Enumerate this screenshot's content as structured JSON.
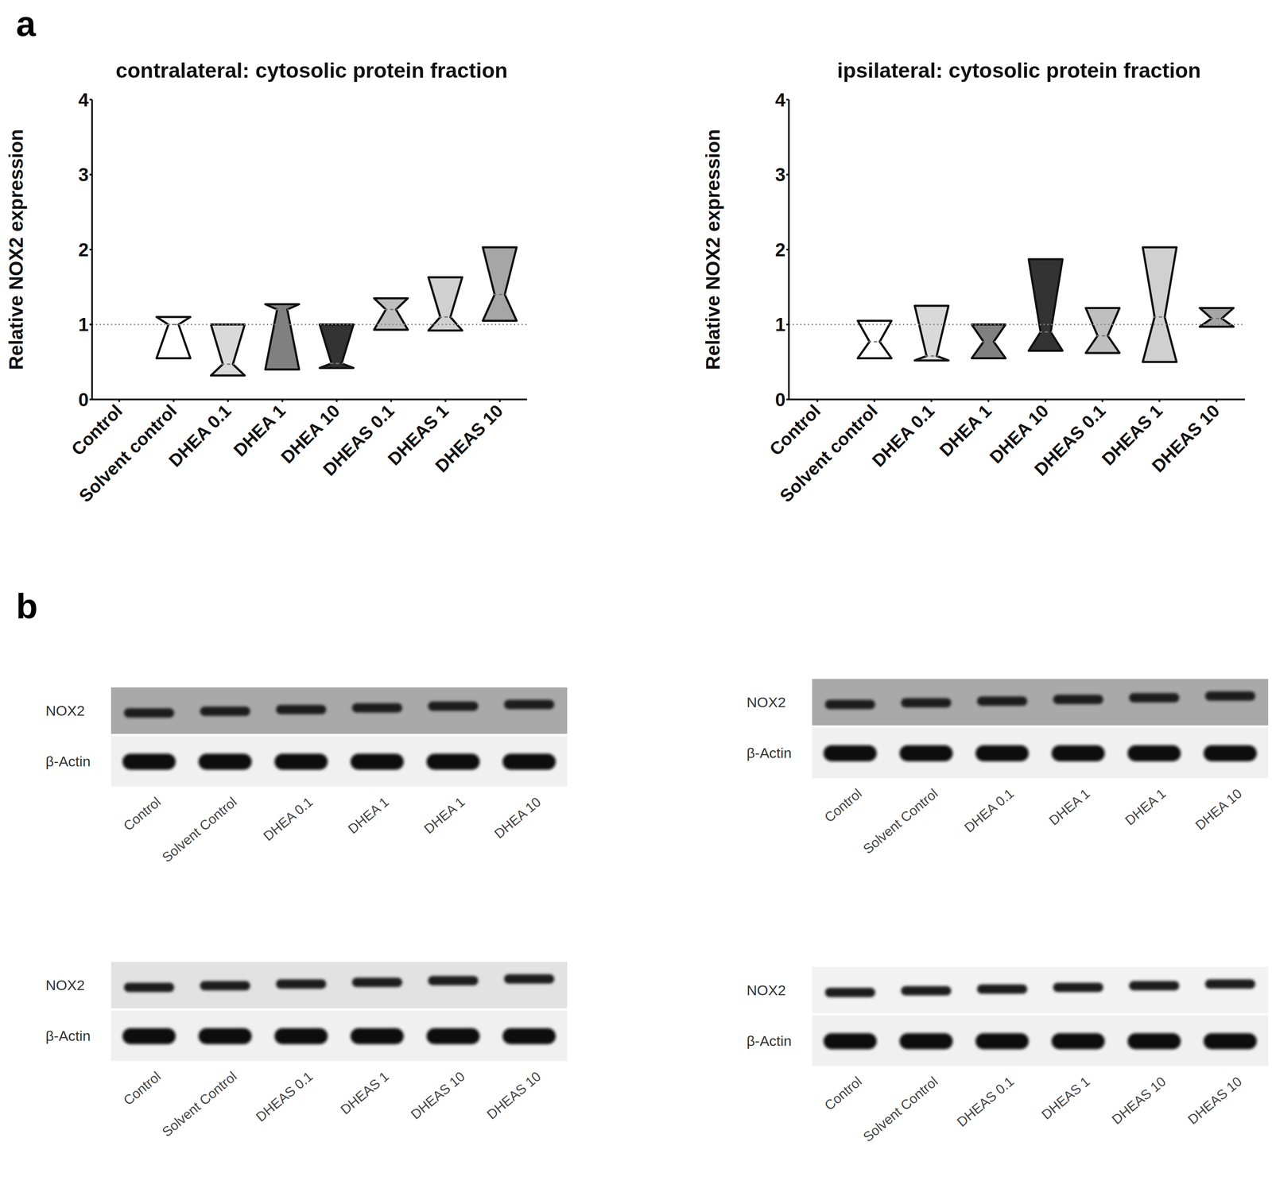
{
  "panel_labels": [
    "a",
    "b"
  ],
  "chart_data": [
    {
      "type": "violin",
      "title": "contralateral: cytosolic protein fraction",
      "y_label": "Relative NOX2 expression",
      "categories": [
        "Control",
        "Solvent control",
        "DHEA 0.1",
        "DHEA 1",
        "DHEA 10",
        "DHEAS 0.1",
        "DHEAS 1",
        "DHEAS 10"
      ],
      "min": [
        null,
        0.55,
        0.32,
        0.4,
        0.42,
        0.93,
        0.92,
        1.05
      ],
      "median": [
        null,
        1.0,
        0.47,
        1.2,
        0.48,
        1.2,
        1.1,
        1.4
      ],
      "max": [
        null,
        1.1,
        1.0,
        1.27,
        1.0,
        1.35,
        1.63,
        2.03
      ],
      "colors": [
        null,
        "#ffffff",
        "#d9d9d9",
        "#808080",
        "#333333",
        "#bfbfbf",
        "#d0d0d0",
        "#a6a6a6"
      ],
      "hline": 1,
      "ylim": [
        0,
        4
      ],
      "yticks": [
        0,
        1,
        2,
        3,
        4
      ]
    },
    {
      "type": "violin",
      "title": "ipsilateral: cytosolic protein fraction",
      "y_label": "Relative NOX2 expression",
      "categories": [
        "Control",
        "Solvent control",
        "DHEA 0.1",
        "DHEA 1",
        "DHEA 10",
        "DHEAS 0.1",
        "DHEAS 1",
        "DHEAS 10"
      ],
      "min": [
        null,
        0.55,
        0.52,
        0.55,
        0.65,
        0.62,
        0.5,
        0.97
      ],
      "median": [
        null,
        0.77,
        0.58,
        0.77,
        0.9,
        0.85,
        1.1,
        1.08
      ],
      "max": [
        null,
        1.05,
        1.25,
        1.0,
        1.87,
        1.22,
        2.03,
        1.22
      ],
      "colors": [
        null,
        "#ffffff",
        "#d9d9d9",
        "#808080",
        "#333333",
        "#bfbfbf",
        "#d0d0d0",
        "#a6a6a6"
      ],
      "hline": 1,
      "ylim": [
        0,
        4
      ],
      "yticks": [
        0,
        1,
        2,
        3,
        4
      ]
    }
  ],
  "blots": [
    {
      "rows": [
        "NOX2",
        "β-Actin"
      ],
      "lanes": [
        "Control",
        "Solvent Control",
        "DHEA 0.1",
        "DHEA 1",
        "DHEA 1",
        "DHEA 10"
      ]
    },
    {
      "rows": [
        "NOX2",
        "β-Actin"
      ],
      "lanes": [
        "Control",
        "Solvent Control",
        "DHEA 0.1",
        "DHEA 1",
        "DHEA 1",
        "DHEA 10"
      ]
    },
    {
      "rows": [
        "NOX2",
        "β-Actin"
      ],
      "lanes": [
        "Control",
        "Solvent Control",
        "DHEAS 0.1",
        "DHEAS 1",
        "DHEAS 10",
        "DHEAS 10"
      ]
    },
    {
      "rows": [
        "NOX2",
        "β-Actin"
      ],
      "lanes": [
        "Control",
        "Solvent Control",
        "DHEAS 0.1",
        "DHEAS 1",
        "DHEAS 10",
        "DHEAS 10"
      ]
    }
  ]
}
